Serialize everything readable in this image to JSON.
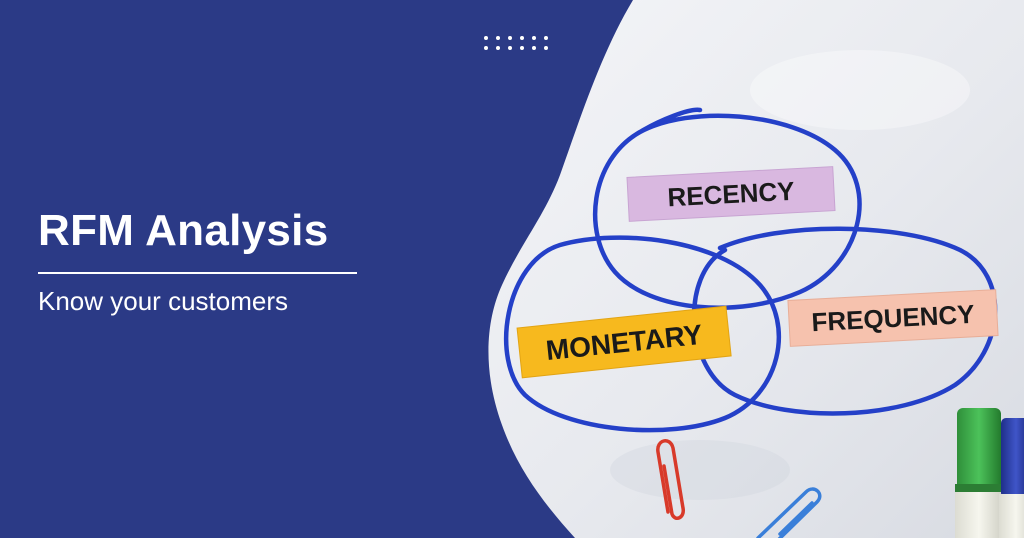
{
  "banner": {
    "title": "RFM Analysis",
    "subtitle": "Know your customers",
    "background_color": "#2b3a86"
  },
  "photo": {
    "notes": {
      "recency": {
        "label": "RECENCY",
        "color": "#d9b8e0"
      },
      "monetary": {
        "label": "MONETARY",
        "color": "#f7b91e"
      },
      "frequency": {
        "label": "FREQUENCY",
        "color": "#f6c2ae"
      }
    },
    "marker_color": "#2440c8",
    "icons": [
      "paperclip-icon",
      "marker-icon"
    ]
  }
}
